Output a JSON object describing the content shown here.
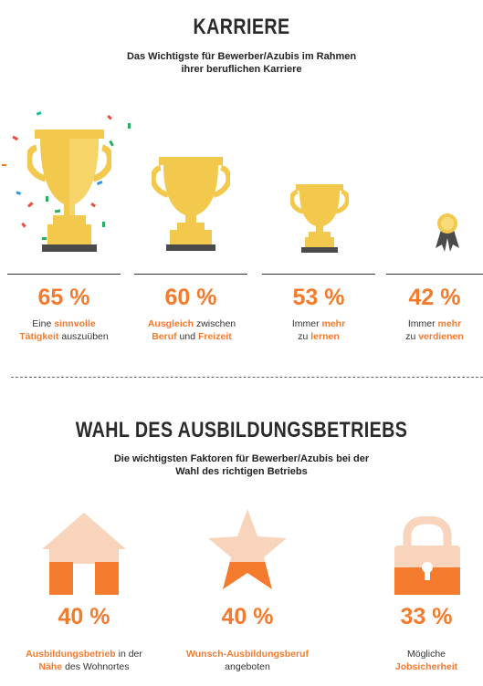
{
  "section1": {
    "title": "KARRIERE",
    "subtitle_line1": "Das Wichtigste für Bewerber/Azubis im Rahmen",
    "subtitle_line2": "ihrer beruflichen Karriere",
    "items": [
      {
        "percent": "65 %",
        "line1_a": "Eine ",
        "line1_hl": "sinnvolle",
        "line2_hl": "Tätigkeit",
        "line2_b": " auszuüben",
        "icon": "trophy-large-icon"
      },
      {
        "percent": "60 %",
        "line1_hl": "Ausgleich",
        "line1_b": " zwischen",
        "line2_hl": "Beruf",
        "line2_mid": " und ",
        "line2_hl2": "Freizeit",
        "icon": "trophy-medium-icon"
      },
      {
        "percent": "53 %",
        "line1_a": "Immer ",
        "line1_hl": "mehr",
        "line2_a": "zu ",
        "line2_hl": "lernen",
        "icon": "trophy-small-icon"
      },
      {
        "percent": "42 %",
        "line1_a": "Immer ",
        "line1_hl": "mehr",
        "line2_a": "zu ",
        "line2_hl": "verdienen",
        "icon": "medal-rosette-icon"
      }
    ]
  },
  "section2": {
    "title": "WAHL DES AUSBILDUNGSBETRIEBS",
    "subtitle_line1": "Die wichtigsten Faktoren für Bewerber/Azubis bei der",
    "subtitle_line2": "Wahl des richtigen Betriebs",
    "items": [
      {
        "percent": "40 %",
        "line1_hl": "Ausbildungsbetrieb",
        "line1_b": " in der",
        "line2_hl": "Nähe",
        "line2_b": " des Wohnortes",
        "icon": "house-icon"
      },
      {
        "percent": "40 %",
        "line1_hl": "Wunsch-Ausbildungsberuf",
        "line2_a": "angeboten",
        "icon": "star-icon"
      },
      {
        "percent": "33 %",
        "line1_a": "Mögliche",
        "line2_hl": "Jobsicherheit",
        "icon": "padlock-icon"
      }
    ]
  },
  "colors": {
    "accent": "#f47a2d",
    "gold": "#f2c94c",
    "gold_light": "#f8dc7a",
    "peach": "#f9d4bd",
    "base": "#4a4a4a"
  }
}
